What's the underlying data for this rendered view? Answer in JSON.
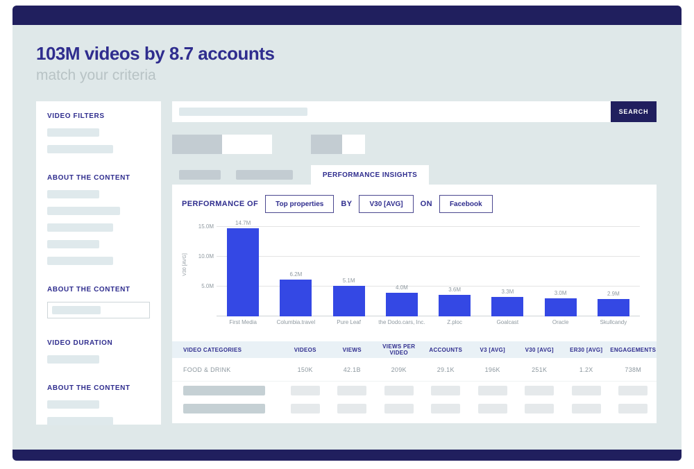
{
  "header": {
    "title": "103M videos by 8.7 accounts",
    "subtitle": "match your criteria"
  },
  "search": {
    "button_label": "SEARCH"
  },
  "sidebar": {
    "sections": [
      {
        "label": "VIDEO FILTERS"
      },
      {
        "label": "ABOUT THE CONTENT"
      },
      {
        "label": "ABOUT THE CONTENT"
      },
      {
        "label": "VIDEO DURATION"
      },
      {
        "label": "ABOUT THE CONTENT"
      }
    ]
  },
  "tabs": {
    "active_label": "PERFORMANCE INSIGHTS"
  },
  "controls": {
    "prefix": "PERFORMANCE OF",
    "property_value": "Top properties",
    "by_label": "BY",
    "metric_value": "V30 [AVG]",
    "on_label": "ON",
    "platform_value": "Facebook"
  },
  "chart_data": {
    "type": "bar",
    "categories": [
      "First Media",
      "Columbia.travel",
      "Pure Leaf",
      "the Dodo.cars, Inc.",
      "Z.ploc",
      "Goalcast",
      "Oracle",
      "Skullcandy"
    ],
    "values": [
      14.7,
      6.2,
      5.1,
      4.0,
      3.6,
      3.3,
      3.0,
      2.9
    ],
    "value_labels": [
      "14.7M",
      "6.2M",
      "5.1M",
      "4.0M",
      "3.6M",
      "3.3M",
      "3.0M",
      "2.9M"
    ],
    "title": "",
    "xlabel": "",
    "ylabel": "V30 [AVG]",
    "ylim": [
      0,
      16
    ],
    "yticks": [
      {
        "value": 5,
        "label": "5.0M"
      },
      {
        "value": 10,
        "label": "10.0M"
      },
      {
        "value": 15,
        "label": "15.0M"
      }
    ],
    "grid": true,
    "legend": false,
    "bar_color": "#3448e4"
  },
  "table": {
    "headers": [
      "VIDEO CATEGORIES",
      "VIDEOS",
      "VIEWS",
      "VIEWS PER VIDEO",
      "ACCOUNTS",
      "V3 [AVG]",
      "V30 [AVG]",
      "ER30 [AVG]",
      "ENGAGEMENTS"
    ],
    "rows": [
      [
        "FOOD & DRINK",
        "150K",
        "42.1B",
        "209K",
        "29.1K",
        "196K",
        "251K",
        "1.2X",
        "738M"
      ]
    ],
    "placeholder_row_count": 2
  },
  "colors": {
    "navy": "#201f5e",
    "title_navy": "#2f2d8e",
    "bar_blue": "#3448e4",
    "page_bg": "#dfe8e9",
    "skeleton": "#dfe9ec",
    "chip_gray": "#c3ccd2",
    "table_header_bg": "#e9f1f6",
    "muted_text": "#8f99a0"
  }
}
